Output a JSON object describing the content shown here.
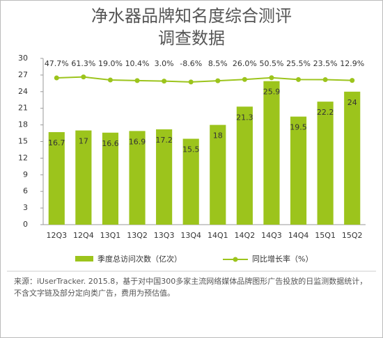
{
  "chart_data": {
    "type": "bar-line",
    "title": [
      "净水器品牌知名度综合测评",
      "调查数据"
    ],
    "categories": [
      "12Q3",
      "12Q4",
      "13Q1",
      "13Q2",
      "13Q3",
      "13Q4",
      "14Q1",
      "14Q2",
      "14Q3",
      "14Q4",
      "15Q1",
      "15Q2"
    ],
    "ylim": [
      0,
      30
    ],
    "yticks": [
      0,
      3,
      6,
      9,
      12,
      15,
      18,
      21,
      24,
      27,
      30
    ],
    "y2lim": [
      -2000,
      320
    ],
    "series": [
      {
        "name": "季度总访问次数（亿次）",
        "color": "#9cc41c",
        "values": [
          16.7,
          17.0,
          16.6,
          16.9,
          17.2,
          15.5,
          18.0,
          21.3,
          25.9,
          19.5,
          22.2,
          24.0
        ]
      },
      {
        "name": "同比增长率（%）",
        "color": "#9cc41c",
        "axis": "y2",
        "values": [
          47.7,
          61.3,
          19.0,
          10.4,
          3.0,
          -8.6,
          8.5,
          26.0,
          50.5,
          25.5,
          23.5,
          12.9
        ],
        "value_labels": [
          "47.7%",
          "61.3%",
          "19.0%",
          "10.4%",
          "3.0%",
          "-8.6%",
          "8.5%",
          "26.0%",
          "50.5%",
          "25.5%",
          "23.5%",
          "12.9%"
        ]
      }
    ],
    "source": "来源：iUserTracker. 2015.8，基于对中国300多家主流网络媒体品牌图形广告投放的日监测数据统计，不含文字链及部分定向类广告，费用为预估值。"
  }
}
